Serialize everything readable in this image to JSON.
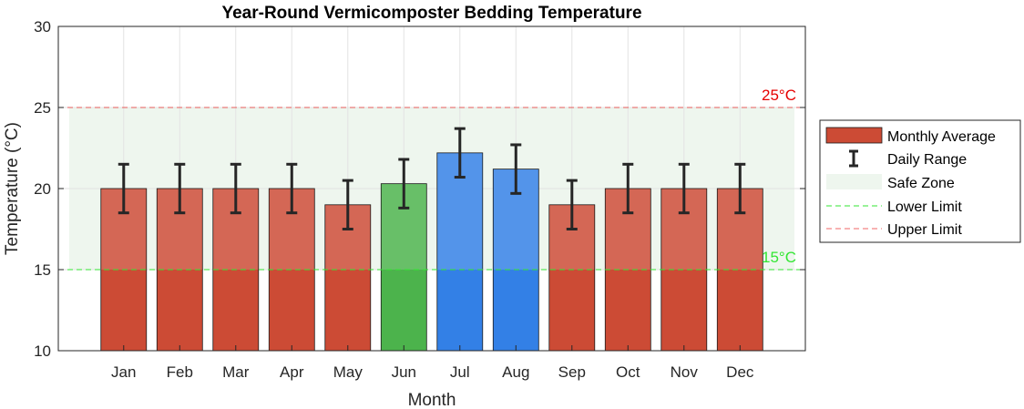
{
  "chart_data": {
    "type": "bar",
    "title": "Year-Round Vermicomposter Bedding Temperature",
    "xlabel": "Month",
    "ylabel": "Temperature (°C)",
    "ylim": [
      10,
      30
    ],
    "yticks": [
      10,
      15,
      20,
      25,
      30
    ],
    "grid": true,
    "categories": [
      "Jan",
      "Feb",
      "Mar",
      "Apr",
      "May",
      "Jun",
      "Jul",
      "Aug",
      "Sep",
      "Oct",
      "Nov",
      "Dec"
    ],
    "series": [
      {
        "name": "Monthly Average",
        "values": [
          20,
          20,
          20,
          20,
          19,
          20.3,
          22.2,
          21.2,
          19,
          20,
          20,
          20
        ],
        "colors": [
          "#cc4b35",
          "#cc4b35",
          "#cc4b35",
          "#cc4b35",
          "#cc4b35",
          "#4cb34c",
          "#3380e6",
          "#3380e6",
          "#cc4b35",
          "#cc4b35",
          "#cc4b35",
          "#cc4b35"
        ]
      },
      {
        "name": "Daily Range",
        "low": [
          18.5,
          18.5,
          18.5,
          18.5,
          17.5,
          18.8,
          20.7,
          19.7,
          17.5,
          18.5,
          18.5,
          18.5
        ],
        "high": [
          21.5,
          21.5,
          21.5,
          21.5,
          20.5,
          21.8,
          23.7,
          22.7,
          20.5,
          21.5,
          21.5,
          21.5
        ]
      }
    ],
    "safe_zone": {
      "name": "Safe Zone",
      "low": 15,
      "high": 25,
      "color": "#eef6ee"
    },
    "reference_lines": [
      {
        "name": "Lower Limit",
        "value": 15,
        "label": "15°C",
        "color": "#33e633"
      },
      {
        "name": "Upper Limit",
        "value": 25,
        "label": "25°C",
        "color": "#e60000"
      }
    ],
    "legend": {
      "position": "right",
      "entries": [
        "Monthly Average",
        "Daily Range",
        "Safe Zone",
        "Lower Limit",
        "Upper Limit"
      ]
    }
  }
}
